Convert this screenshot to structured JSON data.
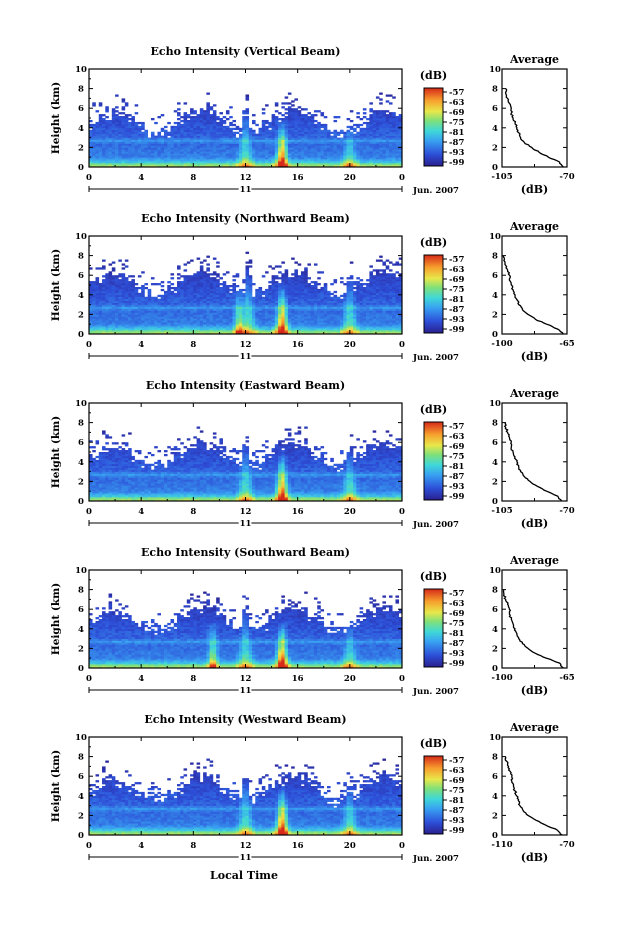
{
  "figure": {
    "date_label": "Jun. 2007",
    "day_label": "11",
    "xlabel": "Local Time",
    "colorbar_unit": "(dB)",
    "profile_title": "Average",
    "profile_xlabel": "(dB)",
    "ylabel": "Height (km)"
  },
  "chart_data": [
    {
      "type": "heatmap",
      "title": "Echo Intensity (Vertical Beam)",
      "xlabel": "Local Time",
      "ylabel": "Height (km)",
      "x_ticks": [
        "0",
        "4",
        "8",
        "12",
        "16",
        "20",
        "0"
      ],
      "y_ticks": [
        "0",
        "2",
        "4",
        "6",
        "8",
        "10"
      ],
      "xlim": [
        0,
        24
      ],
      "ylim": [
        0,
        10
      ],
      "colorbar": {
        "label": "(dB)",
        "ticks": [
          "-57",
          "-63",
          "-69",
          "-75",
          "-81",
          "-87",
          "-93",
          "-99"
        ],
        "range": [
          -99,
          -57
        ]
      },
      "features": {
        "top_km": 6.0,
        "storm_hours": [
          12.0,
          14.8,
          20.0
        ],
        "storm_tops_km": [
          6.8,
          5.5,
          4.9
        ],
        "intense_hours": [
          14.8
        ]
      },
      "profile": {
        "title": "Average",
        "xlabel": "(dB)",
        "x_ticks": [
          "-105",
          "-70"
        ],
        "xlim": [
          -105,
          -70
        ],
        "y_ticks": [
          "0",
          "2",
          "4",
          "6",
          "8",
          "10"
        ],
        "ylim": [
          0,
          10
        ],
        "height_km": [
          0.0,
          0.5,
          1.0,
          1.5,
          2.0,
          2.5,
          3.0,
          3.5,
          4.0,
          4.5,
          5.0,
          5.5,
          6.0,
          6.5,
          7.0,
          7.5,
          8.0
        ],
        "db": [
          -72,
          -74,
          -80,
          -85,
          -89,
          -93,
          -95,
          -96,
          -97,
          -98,
          -99,
          -100,
          -100,
          -101,
          -102,
          -103,
          -103
        ]
      }
    },
    {
      "type": "heatmap",
      "title": "Echo Intensity (Northward Beam)",
      "xlabel": "Local Time",
      "ylabel": "Height (km)",
      "x_ticks": [
        "0",
        "4",
        "8",
        "12",
        "16",
        "20",
        "0"
      ],
      "y_ticks": [
        "0",
        "2",
        "4",
        "6",
        "8",
        "10"
      ],
      "xlim": [
        0,
        24
      ],
      "ylim": [
        0,
        10
      ],
      "colorbar": {
        "label": "(dB)",
        "ticks": [
          "-57",
          "-63",
          "-69",
          "-75",
          "-81",
          "-87",
          "-93",
          "-99"
        ],
        "range": [
          -99,
          -57
        ]
      },
      "features": {
        "top_km": 6.6,
        "storm_hours": [
          12.2,
          14.8,
          20.0
        ],
        "storm_tops_km": [
          7.5,
          6.0,
          7.0
        ],
        "intense_hours": [
          11.5,
          14.8
        ]
      },
      "profile": {
        "title": "Average",
        "xlabel": "(dB)",
        "x_ticks": [
          "-100",
          "-65"
        ],
        "xlim": [
          -100,
          -65
        ],
        "y_ticks": [
          "0",
          "2",
          "4",
          "6",
          "8",
          "10"
        ],
        "ylim": [
          0,
          10
        ],
        "height_km": [
          0.0,
          0.5,
          1.0,
          1.5,
          2.0,
          2.5,
          3.0,
          3.5,
          4.0,
          4.5,
          5.0,
          5.5,
          6.0,
          6.5,
          7.0,
          7.5,
          8.0
        ],
        "db": [
          -67,
          -70,
          -76,
          -82,
          -86,
          -89,
          -91,
          -92,
          -93,
          -94,
          -95,
          -96,
          -96,
          -97,
          -98,
          -99,
          -99
        ]
      }
    },
    {
      "type": "heatmap",
      "title": "Echo Intensity (Eastward Beam)",
      "xlabel": "Local Time",
      "ylabel": "Height (km)",
      "x_ticks": [
        "0",
        "4",
        "8",
        "12",
        "16",
        "20",
        "0"
      ],
      "y_ticks": [
        "0",
        "2",
        "4",
        "6",
        "8",
        "10"
      ],
      "xlim": [
        0,
        24
      ],
      "ylim": [
        0,
        10
      ],
      "colorbar": {
        "label": "(dB)",
        "ticks": [
          "-57",
          "-63",
          "-69",
          "-75",
          "-81",
          "-87",
          "-93",
          "-99"
        ],
        "range": [
          -99,
          -57
        ]
      },
      "features": {
        "top_km": 6.2,
        "storm_hours": [
          12.0,
          14.8,
          20.0
        ],
        "storm_tops_km": [
          7.0,
          6.0,
          6.2
        ],
        "intense_hours": [
          14.8
        ]
      },
      "profile": {
        "title": "Average",
        "xlabel": "(dB)",
        "x_ticks": [
          "-105",
          "-70"
        ],
        "xlim": [
          -105,
          -70
        ],
        "y_ticks": [
          "0",
          "2",
          "4",
          "6",
          "8",
          "10"
        ],
        "ylim": [
          0,
          10
        ],
        "height_km": [
          0.0,
          0.5,
          1.0,
          1.5,
          2.0,
          2.5,
          3.0,
          3.5,
          4.0,
          4.5,
          5.0,
          5.5,
          6.0,
          6.5,
          7.0,
          7.5,
          8.0
        ],
        "db": [
          -73,
          -75,
          -81,
          -86,
          -90,
          -93,
          -95,
          -96,
          -97,
          -98,
          -99,
          -100,
          -100,
          -101,
          -102,
          -103,
          -103
        ]
      }
    },
    {
      "type": "heatmap",
      "title": "Echo Intensity (Southward Beam)",
      "xlabel": "Local Time",
      "ylabel": "Height (km)",
      "x_ticks": [
        "0",
        "4",
        "8",
        "12",
        "16",
        "20",
        "0"
      ],
      "y_ticks": [
        "0",
        "2",
        "4",
        "6",
        "8",
        "10"
      ],
      "xlim": [
        0,
        24
      ],
      "ylim": [
        0,
        10
      ],
      "colorbar": {
        "label": "(dB)",
        "ticks": [
          "-57",
          "-63",
          "-69",
          "-75",
          "-81",
          "-87",
          "-93",
          "-99"
        ],
        "range": [
          -99,
          -57
        ]
      },
      "features": {
        "top_km": 6.4,
        "storm_hours": [
          12.0,
          14.8,
          20.0
        ],
        "storm_tops_km": [
          7.0,
          5.5,
          5.2
        ],
        "intense_hours": [
          9.5,
          14.8
        ]
      },
      "profile": {
        "title": "Average",
        "xlabel": "(dB)",
        "x_ticks": [
          "-100",
          "-65"
        ],
        "xlim": [
          -100,
          -65
        ],
        "y_ticks": [
          "0",
          "2",
          "4",
          "6",
          "8",
          "10"
        ],
        "ylim": [
          0,
          10
        ],
        "height_km": [
          0.0,
          0.5,
          1.0,
          1.5,
          2.0,
          2.5,
          3.0,
          3.5,
          4.0,
          4.5,
          5.0,
          5.5,
          6.0,
          6.5,
          7.0,
          7.5,
          8.0
        ],
        "db": [
          -67,
          -69,
          -76,
          -82,
          -86,
          -89,
          -91,
          -92,
          -93,
          -94,
          -95,
          -96,
          -96,
          -97,
          -98,
          -99,
          -99
        ]
      }
    },
    {
      "type": "heatmap",
      "title": "Echo Intensity (Westward Beam)",
      "xlabel": "Local Time",
      "ylabel": "Height (km)",
      "x_ticks": [
        "0",
        "4",
        "8",
        "12",
        "16",
        "20",
        "0"
      ],
      "y_ticks": [
        "0",
        "2",
        "4",
        "6",
        "8",
        "10"
      ],
      "xlim": [
        0,
        24
      ],
      "ylim": [
        0,
        10
      ],
      "colorbar": {
        "label": "(dB)",
        "ticks": [
          "-57",
          "-63",
          "-69",
          "-75",
          "-81",
          "-87",
          "-93",
          "-99"
        ],
        "range": [
          -99,
          -57
        ]
      },
      "features": {
        "top_km": 6.2,
        "storm_hours": [
          12.0,
          14.8,
          20.0
        ],
        "storm_tops_km": [
          7.0,
          6.0,
          5.8
        ],
        "intense_hours": [
          14.8
        ]
      },
      "profile": {
        "title": "Average",
        "xlabel": "(dB)",
        "x_ticks": [
          "-110",
          "-70"
        ],
        "xlim": [
          -110,
          -70
        ],
        "y_ticks": [
          "0",
          "2",
          "4",
          "6",
          "8",
          "10"
        ],
        "ylim": [
          0,
          10
        ],
        "height_km": [
          0.0,
          0.5,
          1.0,
          1.5,
          2.0,
          2.5,
          3.0,
          3.5,
          4.0,
          4.5,
          5.0,
          5.5,
          6.0,
          6.5,
          7.0,
          7.5,
          8.0
        ],
        "db": [
          -73,
          -76,
          -83,
          -89,
          -94,
          -97,
          -99,
          -100,
          -101,
          -102,
          -103,
          -104,
          -104,
          -105,
          -106,
          -107,
          -108
        ]
      }
    }
  ]
}
